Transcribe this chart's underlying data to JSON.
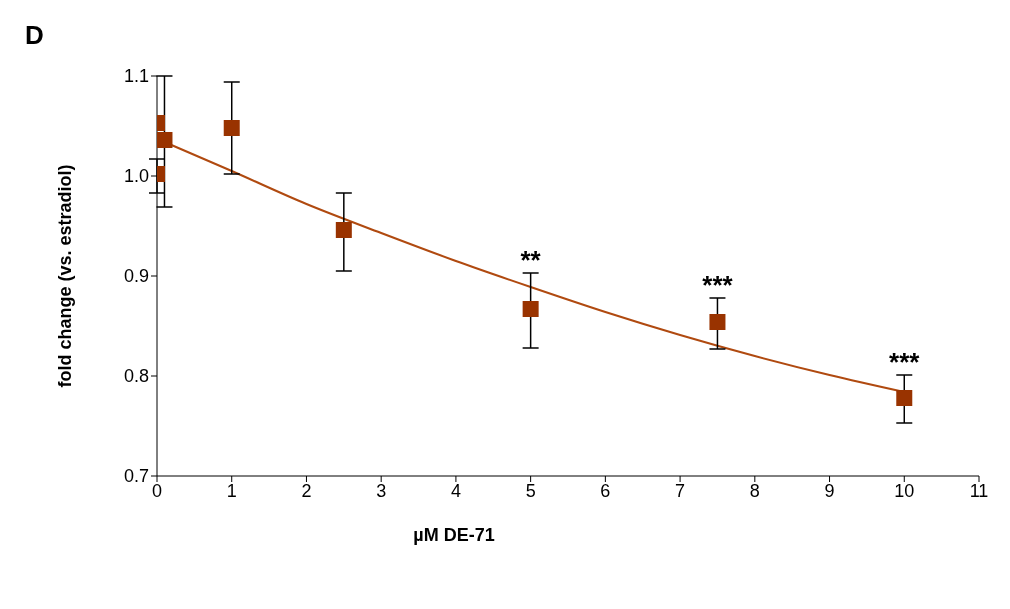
{
  "chart_data": {
    "type": "scatter",
    "title": "D",
    "xlabel": "µM DE-71",
    "ylabel": "fold change (vs. estradiol)",
    "xlim": [
      0,
      11
    ],
    "xticks": [
      0,
      1,
      2,
      3,
      4,
      5,
      6,
      7,
      8,
      9,
      10,
      11
    ],
    "ylim": [
      0.7,
      1.1
    ],
    "yticks": [
      0.7,
      0.8,
      0.9,
      {
        "value": 1,
        "label": "1.0"
      },
      1.1
    ],
    "grid": false,
    "legend": false,
    "marker": "square",
    "series": [
      {
        "color": "#993300",
        "x": [
          0,
          0,
          0.1,
          1,
          2.5,
          5,
          7.5,
          10
        ],
        "values": [
          1.053,
          1.002,
          1.036,
          1.048,
          0.946,
          0.867,
          0.854,
          0.778
        ],
        "errors": [
          null,
          [
            0.983,
            1.017
          ],
          [
            0.969,
            1.1
          ],
          [
            1.002,
            1.094
          ],
          [
            0.905,
            0.983
          ],
          [
            0.828,
            0.903
          ],
          [
            0.827,
            0.878
          ],
          [
            0.753,
            0.801
          ]
        ]
      },
      {
        "type": "line",
        "color": "#b04a10",
        "marker": "none",
        "line_style": "solid",
        "x": [
          0.1,
          1,
          2,
          3,
          4,
          5,
          6,
          7,
          8,
          9,
          10
        ],
        "values": [
          1.034,
          1.005,
          0.972,
          0.943,
          0.915,
          0.889,
          0.864,
          0.841,
          0.82,
          0.801,
          0.784
        ]
      }
    ],
    "annotations": [
      {
        "text": "**",
        "x": 5,
        "y": 0.867
      },
      {
        "text": "***",
        "x": 7.5,
        "y": 0.854
      },
      {
        "text": "***",
        "x": 10,
        "y": 0.778
      }
    ]
  }
}
